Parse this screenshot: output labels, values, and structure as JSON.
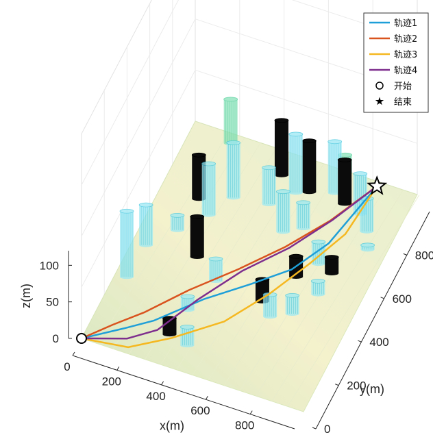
{
  "chart_data": {
    "type": "line",
    "title": "",
    "xlabel": "x(m)",
    "ylabel": "y(m)",
    "zlabel": "z(m)",
    "xlim": [
      0,
      1000
    ],
    "ylim": [
      0,
      1000
    ],
    "zlim": [
      0,
      120
    ],
    "x_ticks": [
      "0",
      "200",
      "400",
      "600",
      "800"
    ],
    "y_ticks": [
      "0",
      "200",
      "400",
      "600",
      "800"
    ],
    "z_ticks": [
      "0",
      "50",
      "100"
    ],
    "grid": true,
    "legend_position": "top-right",
    "colors": {
      "traj1": "#1f9fd8",
      "traj2": "#d9531e",
      "traj3": "#f5b820",
      "traj4": "#7e2f8e",
      "cyl_cyan": "#5fd6ea",
      "cyl_black": "#000000",
      "terrain": "#e9efc6"
    },
    "series": [
      {
        "name": "轨迹1",
        "color": "#1f9fd8",
        "x": [
          0,
          150,
          250,
          400,
          550,
          680,
          780,
          880
        ],
        "y": [
          0,
          80,
          150,
          300,
          420,
          520,
          650,
          880
        ],
        "z": [
          0,
          5,
          5,
          5,
          5,
          8,
          15,
          35
        ]
      },
      {
        "name": "轨迹2",
        "color": "#d9531e",
        "x": [
          0,
          100,
          200,
          330,
          480,
          620,
          750,
          880
        ],
        "y": [
          0,
          80,
          160,
          300,
          440,
          580,
          720,
          880
        ],
        "z": [
          0,
          5,
          8,
          10,
          12,
          15,
          22,
          35
        ]
      },
      {
        "name": "轨迹3",
        "color": "#f5b820",
        "x": [
          0,
          200,
          350,
          520,
          640,
          740,
          830,
          880
        ],
        "y": [
          0,
          20,
          110,
          240,
          400,
          560,
          700,
          880
        ],
        "z": [
          0,
          2,
          3,
          4,
          6,
          10,
          18,
          35
        ]
      },
      {
        "name": "轨迹4",
        "color": "#7e2f8e",
        "x": [
          0,
          180,
          280,
          380,
          500,
          640,
          760,
          880
        ],
        "y": [
          0,
          50,
          120,
          280,
          440,
          580,
          720,
          880
        ],
        "z": [
          0,
          3,
          4,
          8,
          12,
          16,
          24,
          35
        ]
      }
    ],
    "markers": [
      {
        "name": "开始",
        "symbol": "circle",
        "x": 0,
        "y": 0,
        "z": 0
      },
      {
        "name": "结束",
        "symbol": "star",
        "x": 880,
        "y": 880,
        "z": 35
      }
    ],
    "cylinders": [
      {
        "color": "cyan",
        "x": 50,
        "y": 300,
        "h": 90
      },
      {
        "color": "cyan",
        "x": 60,
        "y": 450,
        "h": 55
      },
      {
        "color": "cyan",
        "x": 150,
        "y": 550,
        "h": 20
      },
      {
        "color": "black",
        "x": 170,
        "y": 700,
        "h": 60
      },
      {
        "color": "cyan",
        "x": 240,
        "y": 650,
        "h": 70
      },
      {
        "color": "black",
        "x": 280,
        "y": 470,
        "h": 55
      },
      {
        "color": "cyan",
        "x": 300,
        "y": 750,
        "h": 75
      },
      {
        "color": "cyan",
        "x": 350,
        "y": 250,
        "h": 18
      },
      {
        "color": "black",
        "x": 330,
        "y": 130,
        "h": 22
      },
      {
        "color": "cyan",
        "x": 420,
        "y": 110,
        "h": 25
      },
      {
        "color": "cyan",
        "x": 400,
        "y": 400,
        "h": 30
      },
      {
        "color": "black",
        "x": 440,
        "y": 900,
        "h": 75
      },
      {
        "color": "cyan",
        "x": 450,
        "y": 770,
        "h": 50
      },
      {
        "color": "cyan",
        "x": 530,
        "y": 850,
        "h": 80
      },
      {
        "color": "cyan",
        "x": 560,
        "y": 680,
        "h": 55
      },
      {
        "color": "black",
        "x": 580,
        "y": 870,
        "h": 70
      },
      {
        "color": "cyan",
        "x": 630,
        "y": 720,
        "h": 35
      },
      {
        "color": "black",
        "x": 620,
        "y": 380,
        "h": 30
      },
      {
        "color": "cyan",
        "x": 680,
        "y": 330,
        "h": 30
      },
      {
        "color": "black",
        "x": 700,
        "y": 520,
        "h": 28
      },
      {
        "color": "cyan",
        "x": 680,
        "y": 900,
        "h": 70
      },
      {
        "color": "black",
        "x": 740,
        "y": 870,
        "h": 60
      },
      {
        "color": "cyan",
        "x": 760,
        "y": 600,
        "h": 30
      },
      {
        "color": "cyan",
        "x": 760,
        "y": 370,
        "h": 25
      },
      {
        "color": "cyan",
        "x": 820,
        "y": 480,
        "h": 18
      },
      {
        "color": "cyan",
        "x": 820,
        "y": 850,
        "h": 55
      },
      {
        "color": "black",
        "x": 830,
        "y": 580,
        "h": 22
      },
      {
        "color": "cyan",
        "x": 880,
        "y": 790,
        "h": 45
      },
      {
        "color": "cyan",
        "x": 920,
        "y": 720,
        "h": 6
      },
      {
        "color": "green",
        "x": 180,
        "y": 960,
        "h": 60
      },
      {
        "color": "green",
        "x": 680,
        "y": 990,
        "h": 25
      }
    ]
  }
}
